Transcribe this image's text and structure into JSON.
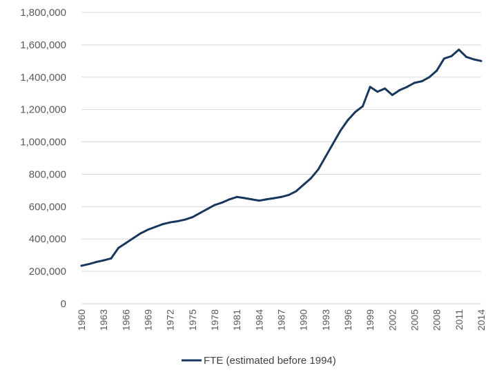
{
  "chart_data": {
    "type": "line",
    "title": "",
    "xlabel": "",
    "ylabel": "",
    "ylim": [
      0,
      1800000
    ],
    "yticks": [
      0,
      200000,
      400000,
      600000,
      800000,
      1000000,
      1200000,
      1400000,
      1600000,
      1800000
    ],
    "ytick_labels": [
      "0",
      "200,000",
      "400,000",
      "600,000",
      "800,000",
      "1,000,000",
      "1,200,000",
      "1,400,000",
      "1,600,000",
      "1,800,000"
    ],
    "xlim": [
      1960,
      2014
    ],
    "xtick_labels": [
      "1960",
      "1963",
      "1966",
      "1969",
      "1972",
      "1975",
      "1978",
      "1981",
      "1984",
      "1987",
      "1990",
      "1993",
      "1996",
      "1999",
      "2002",
      "2005",
      "2008",
      "2011",
      "2014"
    ],
    "grid": true,
    "legend_position": "bottom",
    "series": [
      {
        "name": "FTE (estimated before 1994)",
        "color": "#17375e",
        "x": [
          1960,
          1961,
          1962,
          1963,
          1964,
          1965,
          1966,
          1967,
          1968,
          1969,
          1970,
          1971,
          1972,
          1973,
          1974,
          1975,
          1976,
          1977,
          1978,
          1979,
          1980,
          1981,
          1982,
          1983,
          1984,
          1985,
          1986,
          1987,
          1988,
          1989,
          1990,
          1991,
          1992,
          1993,
          1994,
          1995,
          1996,
          1997,
          1998,
          1999,
          2000,
          2001,
          2002,
          2003,
          2004,
          2005,
          2006,
          2007,
          2008,
          2009,
          2010,
          2011,
          2012,
          2013,
          2014
        ],
        "values": [
          235000,
          245000,
          258000,
          268000,
          280000,
          345000,
          375000,
          405000,
          435000,
          458000,
          475000,
          492000,
          503000,
          510000,
          520000,
          535000,
          560000,
          585000,
          610000,
          625000,
          645000,
          660000,
          653000,
          645000,
          637000,
          645000,
          652000,
          660000,
          672000,
          695000,
          735000,
          775000,
          830000,
          910000,
          990000,
          1070000,
          1135000,
          1185000,
          1220000,
          1340000,
          1310000,
          1330000,
          1290000,
          1320000,
          1340000,
          1365000,
          1375000,
          1400000,
          1440000,
          1515000,
          1530000,
          1570000,
          1525000,
          1510000,
          1500000
        ]
      }
    ]
  }
}
